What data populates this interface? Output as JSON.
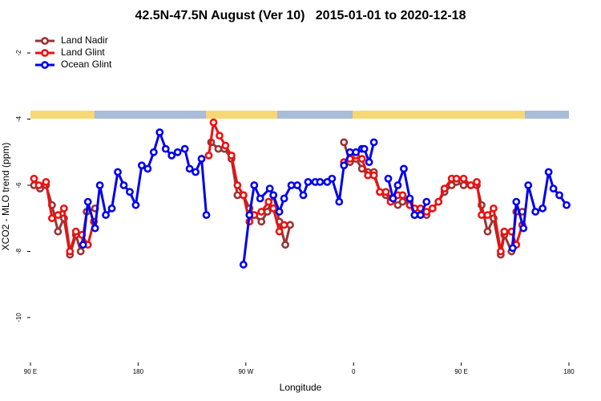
{
  "chart_data": {
    "type": "line",
    "title": "42.5N-47.5N August (Ver 10)   2015-01-01 to 2020-12-18",
    "xlabel": "Longitude",
    "ylabel": "XCO2 - MLO trend (ppm)",
    "xlim": [
      90,
      540
    ],
    "ylim": [
      -11.36,
      -1.32
    ],
    "xticks": [
      {
        "value": 90,
        "label": "90 E"
      },
      180,
      {
        "value": 270,
        "label": "90 W"
      },
      {
        "value": 360,
        "label": "0"
      },
      {
        "value": 450,
        "label": "90 E"
      },
      {
        "value": 540,
        "label": "180"
      }
    ],
    "yticks": [
      -2,
      -4,
      -6,
      -8,
      -10
    ],
    "legend": "top-left",
    "series": [
      {
        "name": "Land Nadir",
        "color": "#993333",
        "x": [
          93,
          98,
          103,
          108,
          113,
          118,
          123,
          128,
          132,
          137,
          144,
          null,
          241,
          247,
          252,
          258,
          263,
          268,
          273,
          277,
          283,
          288,
          293,
          298,
          303,
          307,
          null,
          352,
          357,
          362,
          367,
          372,
          377,
          382,
          387,
          391,
          397,
          401,
          407,
          411,
          416,
          421,
          426,
          431,
          436,
          442,
          446,
          452,
          458,
          463,
          467,
          472,
          477,
          483,
          486,
          492,
          496,
          501
        ],
        "values": [
          -6.0,
          -6.1,
          -6.0,
          -6.6,
          -7.4,
          -7.0,
          -8.1,
          -7.5,
          -8.0,
          -6.8,
          -6.7,
          null,
          -4.7,
          -4.9,
          -4.9,
          -5.2,
          -6.3,
          -6.3,
          -6.7,
          -6.9,
          -7.1,
          -6.8,
          -6.3,
          -7.1,
          -7.8,
          -7.2,
          null,
          -4.7,
          -5.3,
          -5.2,
          -5.5,
          -5.6,
          -5.6,
          -6.2,
          -6.3,
          -6.4,
          -6.6,
          -6.5,
          -6.5,
          -6.9,
          -6.9,
          -6.9,
          -6.7,
          -6.5,
          -6.2,
          -6.0,
          -5.9,
          -6.0,
          -6.0,
          -6.0,
          -6.6,
          -7.4,
          -7.0,
          -8.1,
          -7.5,
          -8.0,
          -6.8,
          -6.8
        ]
      },
      {
        "name": "Land Glint",
        "color": "#ee1111",
        "x": [
          93,
          97,
          103,
          108,
          113,
          118,
          123,
          128,
          133,
          138,
          143,
          null,
          239,
          243,
          248,
          253,
          258,
          263,
          268,
          273,
          277,
          283,
          289,
          293,
          298,
          302,
          null,
          352,
          357,
          362,
          367,
          372,
          377,
          382,
          387,
          391,
          397,
          401,
          407,
          411,
          416,
          421,
          426,
          431,
          436,
          442,
          446,
          452,
          458,
          463,
          467,
          472,
          477,
          483,
          486,
          492,
          496,
          501
        ],
        "values": [
          -5.8,
          -6.0,
          -5.9,
          -7.0,
          -6.9,
          -6.7,
          -8.0,
          -7.4,
          -7.5,
          -7.8,
          -7.1,
          null,
          -5.1,
          -4.1,
          -4.5,
          -4.8,
          -5.1,
          -6.0,
          -6.3,
          -7.1,
          -6.9,
          -6.8,
          -6.5,
          -6.7,
          -7.4,
          -7.2,
          null,
          -5.3,
          -5.2,
          -5.1,
          -5.2,
          -5.7,
          -5.7,
          -6.2,
          -6.2,
          -6.5,
          -6.3,
          -6.3,
          -6.6,
          -6.7,
          -6.7,
          -6.8,
          -6.7,
          -6.5,
          -6.1,
          -5.8,
          -5.8,
          -5.8,
          -6.0,
          -5.9,
          -6.9,
          -6.9,
          -6.7,
          -8.0,
          -7.4,
          -7.4,
          -7.8,
          -7.2
        ]
      },
      {
        "name": "Ocean Glint",
        "color": "#0000ee",
        "x": [
          134,
          138,
          144,
          148,
          153,
          158,
          163,
          168,
          173,
          178,
          183,
          188,
          193,
          198,
          203,
          208,
          213,
          219,
          223,
          228,
          233,
          237,
          null,
          268,
          273,
          277,
          282,
          290,
          293,
          298,
          302,
          308,
          313,
          318,
          322,
          328,
          332,
          338,
          342,
          348,
          352,
          357,
          362,
          367,
          369,
          373,
          377,
          null,
          389,
          393,
          397,
          402,
          407,
          411,
          416,
          421,
          null,
          493,
          496,
          502,
          506,
          512,
          518,
          523,
          527,
          532,
          538
        ],
        "values": [
          -7.8,
          -6.5,
          -7.3,
          -6.0,
          -6.9,
          -6.7,
          -5.6,
          -6.0,
          -6.2,
          -6.6,
          -5.4,
          -5.5,
          -5.0,
          -4.4,
          -4.9,
          -5.1,
          -5.0,
          -4.9,
          -5.5,
          -5.6,
          -5.2,
          -6.9,
          null,
          -8.4,
          -6.9,
          -6.0,
          -6.4,
          -6.1,
          -6.3,
          -6.8,
          -6.4,
          -6.0,
          -6.0,
          -6.3,
          -5.9,
          -5.9,
          -5.9,
          -5.9,
          -5.8,
          -6.5,
          -5.4,
          -5.0,
          -5.0,
          -4.9,
          -4.9,
          -5.3,
          -4.7,
          null,
          -5.8,
          -6.4,
          -6.0,
          -5.5,
          -6.4,
          -6.9,
          -6.9,
          -6.5,
          null,
          -7.9,
          -6.5,
          -7.3,
          -6.0,
          -6.8,
          -6.7,
          -5.6,
          -6.1,
          -6.3,
          -6.6
        ]
      }
    ]
  }
}
